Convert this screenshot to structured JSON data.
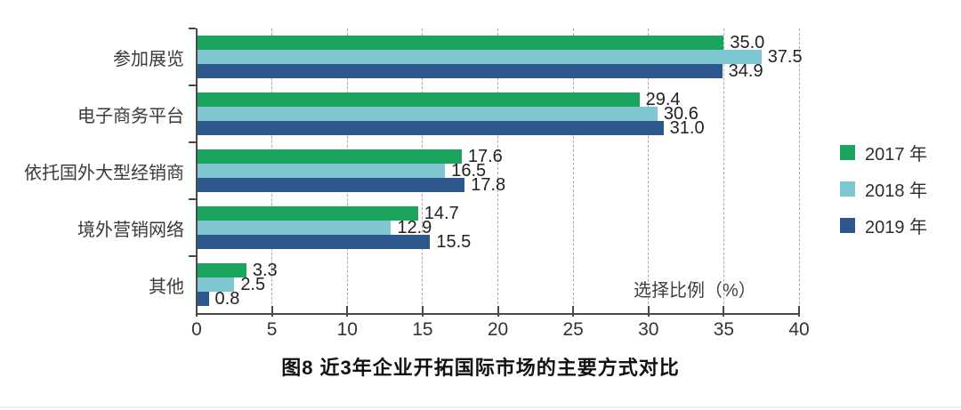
{
  "chart_data": {
    "type": "bar",
    "orientation": "horizontal",
    "title": "图8 近3年企业开拓国际市场的主要方式对比",
    "categories": [
      "参加展览",
      "电子商务平台",
      "依托国外大型经销商",
      "境外营销网络",
      "其他"
    ],
    "series": [
      {
        "name": "2017 年",
        "color": "#1aa45d",
        "values": [
          35.0,
          29.4,
          17.6,
          14.7,
          3.3
        ]
      },
      {
        "name": "2018 年",
        "color": "#7ec6d0",
        "values": [
          37.5,
          30.6,
          16.5,
          12.9,
          2.5
        ]
      },
      {
        "name": "2019 年",
        "color": "#2d578c",
        "values": [
          34.9,
          31.0,
          17.8,
          15.5,
          0.8
        ]
      }
    ],
    "xlabel": "选择比例（%）",
    "xlim": [
      0,
      40
    ],
    "x_ticks": [
      0,
      5,
      10,
      15,
      20,
      25,
      30,
      35,
      40
    ],
    "grid": "vertical-dashed",
    "legend_position": "right",
    "value_labels_decimals": 1,
    "axis_color": "#4a4a4a",
    "grid_color": "#a8a8a8"
  }
}
